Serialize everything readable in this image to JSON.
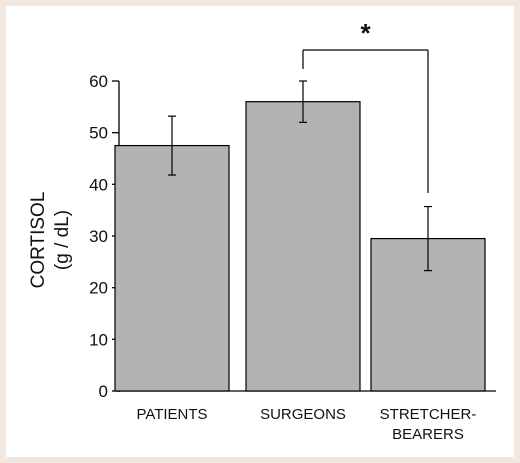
{
  "chart_data": {
    "type": "bar",
    "ylabel_line1": "CORTISOL",
    "ylabel_line2": "(g / dL)",
    "ylim": [
      0,
      60
    ],
    "yticks": [
      0,
      10,
      20,
      30,
      40,
      50,
      60
    ],
    "categories": [
      {
        "lines": [
          "PATIENTS"
        ]
      },
      {
        "lines": [
          "SURGEONS"
        ]
      },
      {
        "lines": [
          "STRETCHER-",
          "BEARERS"
        ]
      }
    ],
    "values": [
      47.5,
      56,
      29.5
    ],
    "errors": [
      5.7,
      4,
      6.2
    ],
    "bar_color": "#b2b2b2",
    "significance": {
      "from": 1,
      "to": 2,
      "label": "*"
    }
  }
}
